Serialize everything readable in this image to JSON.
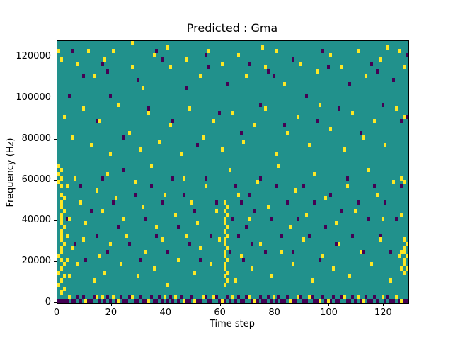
{
  "chart_data": {
    "type": "heatmap",
    "title": "Predicted : Gma",
    "xlabel": "Time step",
    "ylabel": "Frequency (Hz)",
    "x_range": [
      0,
      129
    ],
    "y_range": [
      0,
      128000
    ],
    "x_ticks": [
      0,
      20,
      40,
      60,
      80,
      100,
      120
    ],
    "y_ticks": [
      0,
      20000,
      40000,
      60000,
      80000,
      100000,
      120000
    ],
    "grid": {
      "cols": 129,
      "rows": 64,
      "row_hz": 2000
    },
    "colors": {
      "background": "#21918c",
      "low": "#440154",
      "high": "#fde725"
    },
    "legend": "none",
    "cells_high": [
      [
        0,
        61
      ],
      [
        1,
        59
      ],
      [
        0,
        33
      ],
      [
        1,
        32
      ],
      [
        0,
        31
      ],
      [
        1,
        30
      ],
      [
        0,
        29
      ],
      [
        1,
        28
      ],
      [
        1,
        26
      ],
      [
        2,
        25
      ],
      [
        1,
        24
      ],
      [
        1,
        23
      ],
      [
        2,
        22
      ],
      [
        1,
        21
      ],
      [
        1,
        20
      ],
      [
        1,
        19
      ],
      [
        2,
        18
      ],
      [
        1,
        17
      ],
      [
        1,
        16
      ],
      [
        1,
        15
      ],
      [
        2,
        14
      ],
      [
        1,
        13
      ],
      [
        1,
        12
      ],
      [
        0,
        11
      ],
      [
        1,
        10
      ],
      [
        2,
        9
      ],
      [
        1,
        8
      ],
      [
        0,
        7
      ],
      [
        2,
        6
      ],
      [
        1,
        5
      ],
      [
        0,
        4
      ],
      [
        2,
        3
      ],
      [
        1,
        2
      ],
      [
        3,
        16
      ],
      [
        3,
        10
      ],
      [
        4,
        6
      ],
      [
        4,
        20
      ],
      [
        3,
        28
      ],
      [
        7,
        58
      ],
      [
        11,
        61
      ],
      [
        13,
        55
      ],
      [
        17,
        59
      ],
      [
        20,
        61
      ],
      [
        27,
        63
      ],
      [
        27,
        57
      ],
      [
        31,
        52
      ],
      [
        35,
        60
      ],
      [
        40,
        62
      ],
      [
        41,
        57
      ],
      [
        47,
        59
      ],
      [
        52,
        55
      ],
      [
        55,
        61
      ],
      [
        60,
        58
      ],
      [
        66,
        60
      ],
      [
        69,
        55
      ],
      [
        75,
        62
      ],
      [
        76,
        57
      ],
      [
        80,
        61
      ],
      [
        83,
        53
      ],
      [
        89,
        58
      ],
      [
        95,
        56
      ],
      [
        100,
        60
      ],
      [
        104,
        57
      ],
      [
        110,
        61
      ],
      [
        113,
        55
      ],
      [
        118,
        59
      ],
      [
        121,
        62
      ],
      [
        125,
        61
      ],
      [
        127,
        57
      ],
      [
        2,
        45
      ],
      [
        5,
        40
      ],
      [
        9,
        47
      ],
      [
        12,
        38
      ],
      [
        15,
        44
      ],
      [
        19,
        36
      ],
      [
        22,
        48
      ],
      [
        26,
        41
      ],
      [
        30,
        37
      ],
      [
        33,
        46
      ],
      [
        37,
        39
      ],
      [
        41,
        43
      ],
      [
        45,
        36
      ],
      [
        48,
        47
      ],
      [
        53,
        40
      ],
      [
        57,
        44
      ],
      [
        60,
        37
      ],
      [
        64,
        46
      ],
      [
        68,
        39
      ],
      [
        72,
        43
      ],
      [
        76,
        47
      ],
      [
        80,
        36
      ],
      [
        84,
        41
      ],
      [
        88,
        45
      ],
      [
        92,
        38
      ],
      [
        96,
        48
      ],
      [
        100,
        42
      ],
      [
        105,
        37
      ],
      [
        108,
        46
      ],
      [
        112,
        40
      ],
      [
        116,
        44
      ],
      [
        120,
        38
      ],
      [
        124,
        47
      ],
      [
        127,
        45
      ],
      [
        6,
        30
      ],
      [
        8,
        24
      ],
      [
        10,
        19
      ],
      [
        14,
        27
      ],
      [
        16,
        22
      ],
      [
        18,
        31
      ],
      [
        21,
        25
      ],
      [
        24,
        20
      ],
      [
        28,
        29
      ],
      [
        31,
        23
      ],
      [
        34,
        33
      ],
      [
        36,
        18
      ],
      [
        39,
        26
      ],
      [
        43,
        21
      ],
      [
        46,
        30
      ],
      [
        49,
        24
      ],
      [
        51,
        19
      ],
      [
        54,
        28
      ],
      [
        58,
        22
      ],
      [
        63,
        32
      ],
      [
        66,
        26
      ],
      [
        70,
        20
      ],
      [
        73,
        29
      ],
      [
        77,
        23
      ],
      [
        81,
        33
      ],
      [
        85,
        18
      ],
      [
        87,
        27
      ],
      [
        91,
        21
      ],
      [
        94,
        31
      ],
      [
        98,
        25
      ],
      [
        102,
        19
      ],
      [
        106,
        28
      ],
      [
        109,
        22
      ],
      [
        114,
        32
      ],
      [
        117,
        26
      ],
      [
        119,
        20
      ],
      [
        123,
        29
      ],
      [
        126,
        30
      ],
      [
        61,
        4
      ],
      [
        62,
        5
      ],
      [
        61,
        6
      ],
      [
        62,
        7
      ],
      [
        61,
        8
      ],
      [
        61,
        9
      ],
      [
        62,
        10
      ],
      [
        61,
        11
      ],
      [
        61,
        12
      ],
      [
        62,
        13
      ],
      [
        61,
        14
      ],
      [
        61,
        15
      ],
      [
        62,
        16
      ],
      [
        61,
        17
      ],
      [
        62,
        18
      ],
      [
        61,
        19
      ],
      [
        61,
        20
      ],
      [
        62,
        21
      ],
      [
        61,
        22
      ],
      [
        62,
        23
      ],
      [
        61,
        24
      ],
      [
        127,
        7
      ],
      [
        128,
        8
      ],
      [
        127,
        9
      ],
      [
        127,
        10
      ],
      [
        128,
        11
      ],
      [
        127,
        12
      ],
      [
        127,
        13
      ],
      [
        128,
        14
      ],
      [
        127,
        15
      ],
      [
        126,
        8
      ],
      [
        126,
        12
      ],
      [
        127,
        29
      ],
      [
        126,
        21
      ],
      [
        5,
        13
      ],
      [
        7,
        9
      ],
      [
        9,
        15
      ],
      [
        13,
        5
      ],
      [
        15,
        11
      ],
      [
        17,
        7
      ],
      [
        19,
        14
      ],
      [
        23,
        9
      ],
      [
        25,
        16
      ],
      [
        29,
        6
      ],
      [
        32,
        12
      ],
      [
        35,
        8
      ],
      [
        38,
        15
      ],
      [
        40,
        4
      ],
      [
        44,
        10
      ],
      [
        47,
        16
      ],
      [
        50,
        7
      ],
      [
        52,
        13
      ],
      [
        56,
        9
      ],
      [
        59,
        15
      ],
      [
        65,
        5
      ],
      [
        67,
        11
      ],
      [
        71,
        8
      ],
      [
        74,
        14
      ],
      [
        78,
        6
      ],
      [
        82,
        12
      ],
      [
        86,
        9
      ],
      [
        90,
        15
      ],
      [
        93,
        5
      ],
      [
        97,
        11
      ],
      [
        101,
        8
      ],
      [
        103,
        14
      ],
      [
        107,
        6
      ],
      [
        111,
        12
      ],
      [
        115,
        9
      ],
      [
        118,
        15
      ],
      [
        122,
        5
      ],
      [
        125,
        11
      ],
      [
        4,
        1
      ],
      [
        10,
        0
      ],
      [
        16,
        1
      ],
      [
        22,
        0
      ],
      [
        27,
        1
      ],
      [
        33,
        0
      ],
      [
        39,
        1
      ],
      [
        46,
        0
      ],
      [
        53,
        1
      ],
      [
        60,
        0
      ],
      [
        64,
        1
      ],
      [
        72,
        0
      ],
      [
        79,
        1
      ],
      [
        85,
        0
      ],
      [
        92,
        1
      ],
      [
        99,
        0
      ],
      [
        105,
        1
      ],
      [
        112,
        0
      ],
      [
        119,
        1
      ],
      [
        126,
        0
      ],
      [
        14,
        1
      ],
      [
        20,
        1
      ],
      [
        43,
        1
      ],
      [
        50,
        0
      ],
      [
        57,
        1
      ],
      [
        70,
        1
      ],
      [
        88,
        1
      ],
      [
        96,
        0
      ],
      [
        110,
        1
      ],
      [
        124,
        1
      ]
    ],
    "cells_low": [
      [
        0,
        0
      ],
      [
        1,
        0
      ],
      [
        2,
        0
      ],
      [
        3,
        0
      ],
      [
        5,
        0
      ],
      [
        6,
        0
      ],
      [
        7,
        1
      ],
      [
        8,
        0
      ],
      [
        9,
        1
      ],
      [
        11,
        0
      ],
      [
        12,
        0
      ],
      [
        13,
        1
      ],
      [
        15,
        0
      ],
      [
        17,
        0
      ],
      [
        18,
        1
      ],
      [
        19,
        0
      ],
      [
        21,
        0
      ],
      [
        23,
        1
      ],
      [
        24,
        0
      ],
      [
        25,
        0
      ],
      [
        26,
        1
      ],
      [
        28,
        0
      ],
      [
        29,
        0
      ],
      [
        30,
        1
      ],
      [
        31,
        0
      ],
      [
        32,
        0
      ],
      [
        34,
        1
      ],
      [
        35,
        0
      ],
      [
        36,
        0
      ],
      [
        37,
        1
      ],
      [
        38,
        0
      ],
      [
        40,
        0
      ],
      [
        41,
        1
      ],
      [
        42,
        0
      ],
      [
        44,
        0
      ],
      [
        45,
        1
      ],
      [
        47,
        0
      ],
      [
        48,
        0
      ],
      [
        49,
        1
      ],
      [
        51,
        0
      ],
      [
        52,
        0
      ],
      [
        54,
        1
      ],
      [
        55,
        0
      ],
      [
        56,
        0
      ],
      [
        58,
        1
      ],
      [
        59,
        0
      ],
      [
        61,
        0
      ],
      [
        62,
        1
      ],
      [
        63,
        0
      ],
      [
        65,
        0
      ],
      [
        66,
        1
      ],
      [
        67,
        0
      ],
      [
        68,
        0
      ],
      [
        69,
        1
      ],
      [
        71,
        0
      ],
      [
        73,
        0
      ],
      [
        74,
        1
      ],
      [
        75,
        0
      ],
      [
        76,
        0
      ],
      [
        77,
        1
      ],
      [
        78,
        0
      ],
      [
        80,
        0
      ],
      [
        81,
        1
      ],
      [
        82,
        0
      ],
      [
        83,
        0
      ],
      [
        84,
        1
      ],
      [
        86,
        0
      ],
      [
        87,
        0
      ],
      [
        89,
        1
      ],
      [
        90,
        0
      ],
      [
        91,
        0
      ],
      [
        93,
        1
      ],
      [
        94,
        0
      ],
      [
        95,
        0
      ],
      [
        97,
        1
      ],
      [
        98,
        0
      ],
      [
        100,
        0
      ],
      [
        101,
        1
      ],
      [
        102,
        0
      ],
      [
        103,
        0
      ],
      [
        104,
        1
      ],
      [
        106,
        0
      ],
      [
        107,
        0
      ],
      [
        108,
        1
      ],
      [
        109,
        0
      ],
      [
        111,
        0
      ],
      [
        113,
        1
      ],
      [
        114,
        0
      ],
      [
        115,
        0
      ],
      [
        116,
        1
      ],
      [
        117,
        0
      ],
      [
        120,
        0
      ],
      [
        121,
        1
      ],
      [
        122,
        0
      ],
      [
        123,
        0
      ],
      [
        125,
        0
      ],
      [
        127,
        0
      ],
      [
        128,
        0
      ],
      [
        3,
        20
      ],
      [
        6,
        14
      ],
      [
        8,
        28
      ],
      [
        10,
        10
      ],
      [
        12,
        22
      ],
      [
        14,
        16
      ],
      [
        16,
        30
      ],
      [
        18,
        12
      ],
      [
        20,
        24
      ],
      [
        22,
        18
      ],
      [
        24,
        32
      ],
      [
        26,
        14
      ],
      [
        28,
        26
      ],
      [
        30,
        10
      ],
      [
        32,
        20
      ],
      [
        34,
        28
      ],
      [
        36,
        16
      ],
      [
        38,
        24
      ],
      [
        40,
        12
      ],
      [
        42,
        30
      ],
      [
        44,
        18
      ],
      [
        46,
        26
      ],
      [
        48,
        14
      ],
      [
        50,
        22
      ],
      [
        52,
        10
      ],
      [
        54,
        30
      ],
      [
        56,
        16
      ],
      [
        58,
        24
      ],
      [
        63,
        12
      ],
      [
        64,
        20
      ],
      [
        65,
        28
      ],
      [
        66,
        16
      ],
      [
        67,
        24
      ],
      [
        68,
        10
      ],
      [
        69,
        18
      ],
      [
        70,
        26
      ],
      [
        71,
        14
      ],
      [
        72,
        22
      ],
      [
        74,
        30
      ],
      [
        76,
        12
      ],
      [
        78,
        20
      ],
      [
        80,
        28
      ],
      [
        82,
        16
      ],
      [
        84,
        24
      ],
      [
        86,
        12
      ],
      [
        88,
        20
      ],
      [
        90,
        28
      ],
      [
        92,
        16
      ],
      [
        94,
        24
      ],
      [
        96,
        10
      ],
      [
        98,
        18
      ],
      [
        100,
        26
      ],
      [
        102,
        14
      ],
      [
        104,
        22
      ],
      [
        106,
        30
      ],
      [
        108,
        16
      ],
      [
        110,
        24
      ],
      [
        112,
        12
      ],
      [
        114,
        20
      ],
      [
        116,
        28
      ],
      [
        118,
        16
      ],
      [
        120,
        24
      ],
      [
        122,
        12
      ],
      [
        124,
        20
      ],
      [
        126,
        28
      ],
      [
        4,
        50
      ],
      [
        9,
        55
      ],
      [
        14,
        44
      ],
      [
        16,
        58
      ],
      [
        19,
        50
      ],
      [
        24,
        40
      ],
      [
        29,
        54
      ],
      [
        33,
        47
      ],
      [
        38,
        59
      ],
      [
        42,
        44
      ],
      [
        47,
        52
      ],
      [
        51,
        38
      ],
      [
        55,
        57
      ],
      [
        59,
        46
      ],
      [
        62,
        53
      ],
      [
        67,
        41
      ],
      [
        70,
        58
      ],
      [
        74,
        48
      ],
      [
        79,
        55
      ],
      [
        83,
        43
      ],
      [
        86,
        59
      ],
      [
        91,
        50
      ],
      [
        95,
        44
      ],
      [
        99,
        57
      ],
      [
        103,
        47
      ],
      [
        107,
        53
      ],
      [
        111,
        41
      ],
      [
        115,
        58
      ],
      [
        119,
        48
      ],
      [
        123,
        54
      ],
      [
        126,
        44
      ],
      [
        128,
        45
      ],
      [
        5,
        61
      ],
      [
        18,
        56
      ],
      [
        36,
        61
      ],
      [
        54,
        60
      ],
      [
        77,
        56
      ],
      [
        97,
        61
      ],
      [
        117,
        56
      ],
      [
        128,
        60
      ]
    ]
  }
}
